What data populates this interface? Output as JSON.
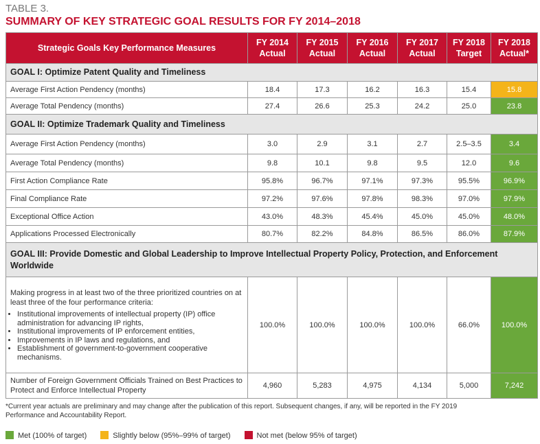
{
  "header": {
    "label": "TABLE 3.",
    "title": "SUMMARY OF KEY STRATEGIC GOAL RESULTS FOR FY 2014–2018"
  },
  "table": {
    "columns": [
      "Strategic Goals Key Performance Measures",
      "FY 2014 Actual",
      "FY 2015 Actual",
      "FY 2016 Actual",
      "FY 2017 Actual",
      "FY 2018 Target",
      "FY 2018 Actual*"
    ],
    "sections": [
      {
        "title": "GOAL I: Optimize Patent Quality and Timeliness",
        "rows": [
          {
            "measure": "Average First Action Pendency (months)",
            "values": [
              "18.4",
              "17.3",
              "16.2",
              "16.3",
              "15.4",
              "15.8"
            ],
            "status_color": "#f4b41a"
          },
          {
            "measure": "Average Total Pendency (months)",
            "values": [
              "27.4",
              "26.6",
              "25.3",
              "24.2",
              "25.0",
              "23.8"
            ],
            "status_color": "#6aa83b"
          }
        ]
      },
      {
        "title": "GOAL II: Optimize Trademark Quality and Timeliness",
        "rows": [
          {
            "measure": "Average First Action Pendency (months)",
            "values": [
              "3.0",
              "2.9",
              "3.1",
              "2.7",
              "2.5–3.5",
              "3.4"
            ],
            "status_color": "#6aa83b"
          },
          {
            "measure": "Average Total Pendency (months)",
            "values": [
              "9.8",
              "10.1",
              "9.8",
              "9.5",
              "12.0",
              "9.6"
            ],
            "status_color": "#6aa83b"
          },
          {
            "measure": "First Action Compliance Rate",
            "values": [
              "95.8%",
              "96.7%",
              "97.1%",
              "97.3%",
              "95.5%",
              "96.9%"
            ],
            "status_color": "#6aa83b"
          },
          {
            "measure": "Final Compliance Rate",
            "values": [
              "97.2%",
              "97.6%",
              "97.8%",
              "98.3%",
              "97.0%",
              "97.9%"
            ],
            "status_color": "#6aa83b"
          },
          {
            "measure": "Exceptional Office Action",
            "values": [
              "43.0%",
              "48.3%",
              "45.4%",
              "45.0%",
              "45.0%",
              "48.0%"
            ],
            "status_color": "#6aa83b"
          },
          {
            "measure": "Applications Processed Electronically",
            "values": [
              "80.7%",
              "82.2%",
              "84.8%",
              "86.5%",
              "86.0%",
              "87.9%"
            ],
            "status_color": "#6aa83b"
          }
        ]
      },
      {
        "title": "GOAL III: Provide Domestic and Global Leadership to Improve Intellectual Property Policy, Protection, and Enforcement Worldwide",
        "rows": [
          {
            "measure": "Making progress in at least two of the three prioritized countries on at least three of the four performance criteria:",
            "bullets": [
              "Institutional improvements of intellectual property (IP) office administration for advancing IP rights,",
              "Institutional improvements of IP enforcement entities,",
              "Improvements in IP laws and regulations, and",
              "Establishment of government-to-government cooperative mechanisms."
            ],
            "values": [
              "100.0%",
              "100.0%",
              "100.0%",
              "100.0%",
              "66.0%",
              "100.0%"
            ],
            "status_color": "#6aa83b"
          },
          {
            "measure": "Number of Foreign Government Officials Trained on Best Practices to Protect and Enforce Intellectual Property",
            "values": [
              "4,960",
              "5,283",
              "4,975",
              "4,134",
              "5,000",
              "7,242"
            ],
            "status_color": "#6aa83b"
          }
        ]
      }
    ]
  },
  "footnote": "*Current year actuals are preliminary and may change after the publication of this report. Subsequent changes, if any, will be reported in the FY 2019 Performance and Accountability Report.",
  "legend": [
    {
      "label": "Met (100% of target)",
      "color": "#6aa83b"
    },
    {
      "label": "Slightly below (95%–99% of target)",
      "color": "#f4b41a"
    },
    {
      "label": "Not met (below 95% of target)",
      "color": "#c41230"
    }
  ]
}
